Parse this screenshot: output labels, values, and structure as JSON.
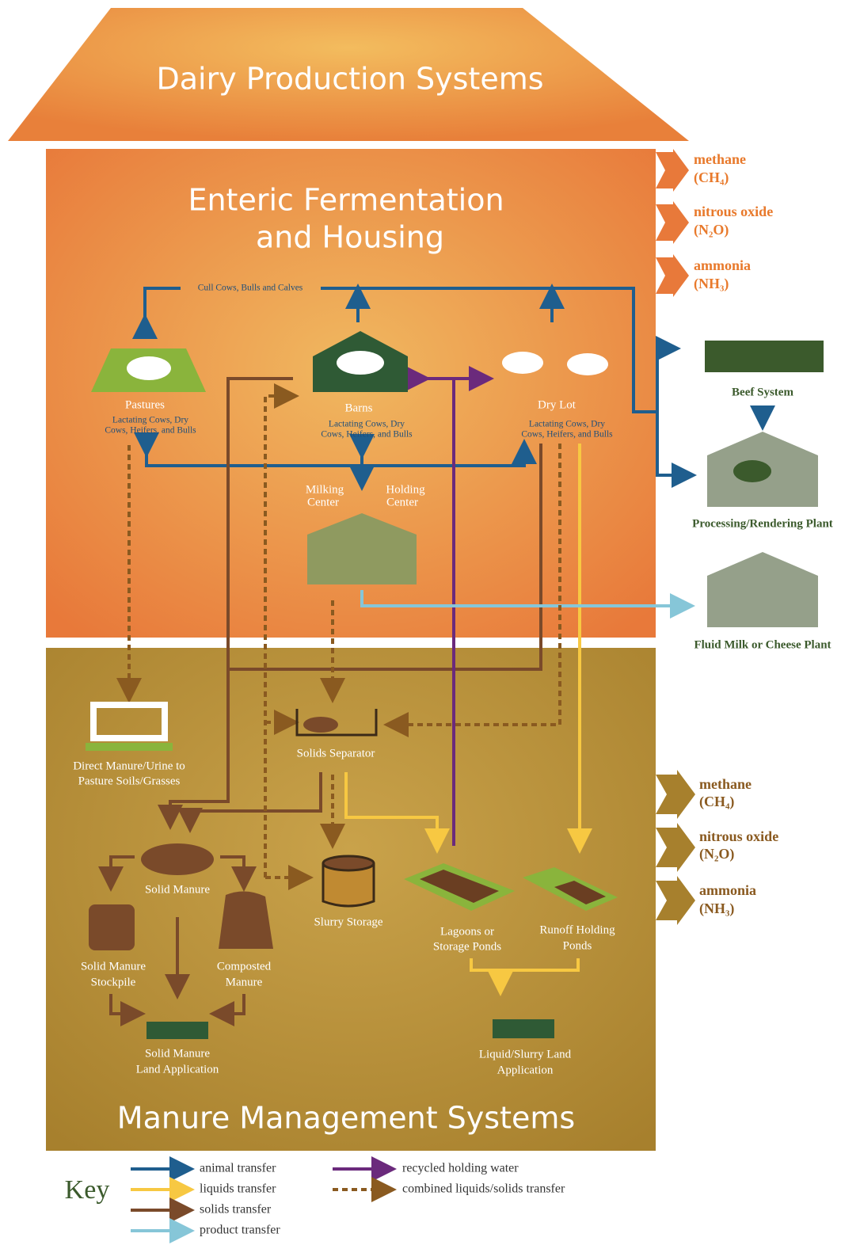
{
  "title": "Dairy Production Systems",
  "enteric": {
    "title": [
      "Enteric Fermentation",
      "and Housing"
    ]
  },
  "emissions_top": [
    {
      "name": "methane",
      "formula": "(CH₄)"
    },
    {
      "name": "nitrous oxide",
      "formula": "(N₂O)"
    },
    {
      "name": "ammonia",
      "formula": "(NH₃)"
    }
  ],
  "cull_label": "Cull Cows, Bulls and Calves",
  "housing": [
    {
      "label": "Pastures",
      "detail": [
        "Lactating Cows, Dry",
        "Cows, Heifers, and Bulls"
      ]
    },
    {
      "label": "Barns",
      "detail": [
        "Lactating Cows, Dry",
        "Cows, Heifers, and Bulls"
      ]
    },
    {
      "label": "Dry Lot",
      "detail": [
        "Lactating Cows, Dry",
        "Cows, Heifers, and Bulls"
      ]
    }
  ],
  "milking": {
    "milking_center": [
      "Milking",
      "Center"
    ],
    "holding_center": [
      "Holding",
      "Center"
    ]
  },
  "external": [
    {
      "label": "Beef System"
    },
    {
      "label": "Processing/Rendering Plant"
    },
    {
      "label": "Fluid Milk or Cheese Plant"
    }
  ],
  "manure": {
    "title": "Manure Management Systems",
    "nodes": [
      {
        "label": [
          "Direct Manure/Urine to",
          "Pasture Soils/Grasses"
        ]
      },
      {
        "label": [
          "Solids Separator"
        ]
      },
      {
        "label": [
          "Solid Manure"
        ]
      },
      {
        "label": [
          "Slurry Storage"
        ]
      },
      {
        "label": [
          "Lagoons or",
          "Storage Ponds"
        ]
      },
      {
        "label": [
          "Runoff Holding",
          "Ponds"
        ]
      },
      {
        "label": [
          "Solid Manure",
          "Stockpile"
        ]
      },
      {
        "label": [
          "Composted",
          "Manure"
        ]
      },
      {
        "label": [
          "Solid Manure",
          "Land Application"
        ]
      },
      {
        "label": [
          "Liquid/Slurry Land",
          "Application"
        ]
      }
    ]
  },
  "emissions_bottom": [
    {
      "name": "methane",
      "formula": "(CH₄)"
    },
    {
      "name": "nitrous oxide",
      "formula": "(N₂O)"
    },
    {
      "name": "ammonia",
      "formula": "(NH₃)"
    }
  ],
  "key": {
    "title": "Key",
    "items": [
      {
        "label": "animal transfer"
      },
      {
        "label": "liquids transfer"
      },
      {
        "label": "solids transfer"
      },
      {
        "label": "product transfer"
      },
      {
        "label": "recycled holding water"
      },
      {
        "label": "combined liquids/solids transfer"
      }
    ]
  }
}
